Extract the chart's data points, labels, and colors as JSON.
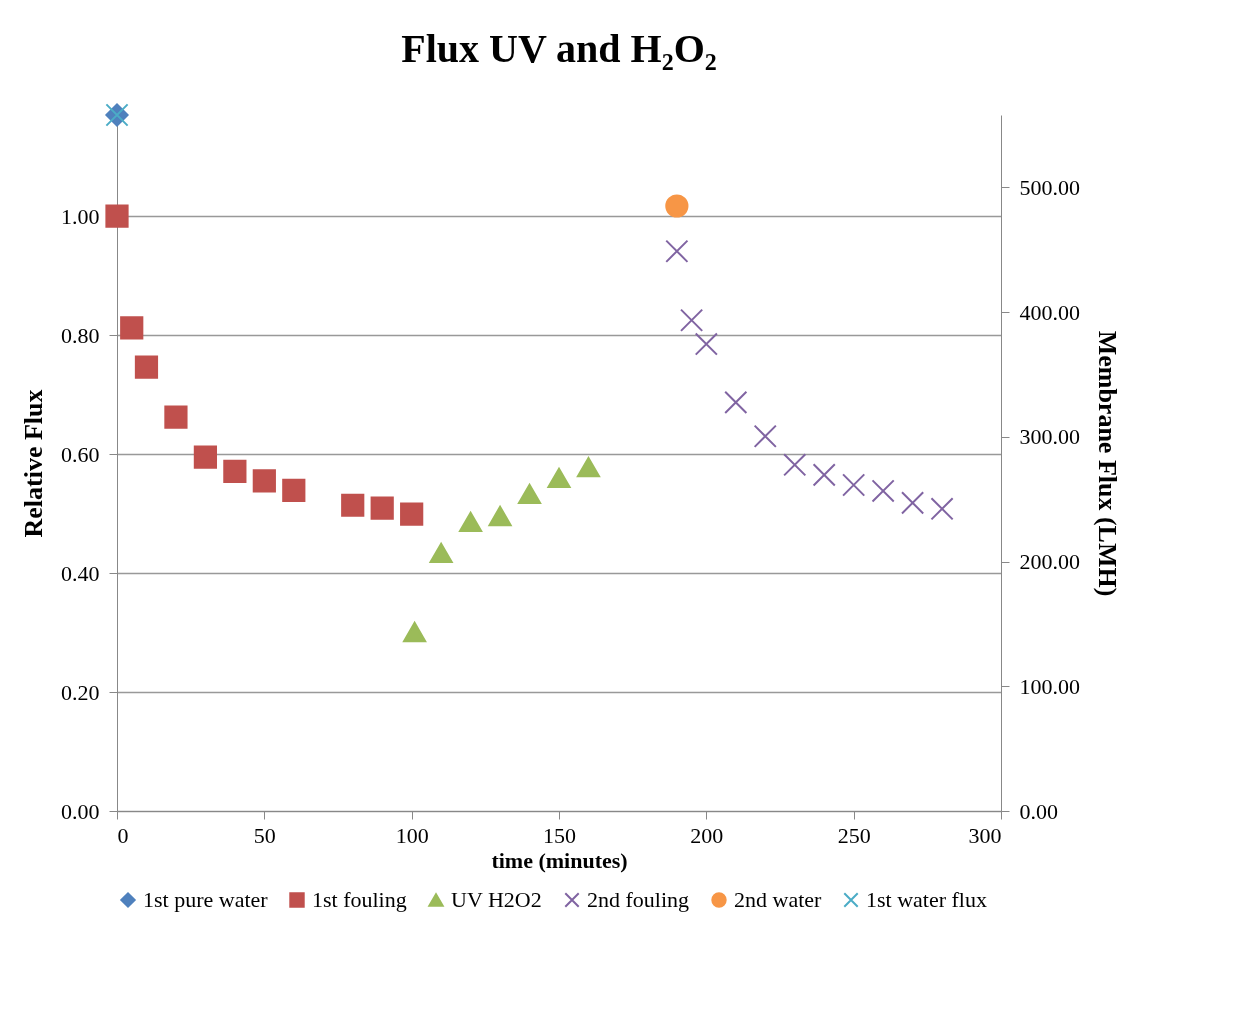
{
  "chart_data": {
    "type": "scatter",
    "title": "Flux UV and H₂O₂",
    "xlabel": "time (minutes)",
    "ylabel": "Relative Flux",
    "y2label": "Membrane Flux (LMH)",
    "xlim": [
      0,
      300
    ],
    "xticks": [
      0,
      50,
      100,
      150,
      200,
      250,
      300
    ],
    "ylim": [
      0,
      1.17
    ],
    "yticks": [
      {
        "value": 0,
        "label": "0.00"
      },
      {
        "value": 0.2,
        "label": "0.20"
      },
      {
        "value": 0.4,
        "label": "0.40"
      },
      {
        "value": 0.6,
        "label": "0.60"
      },
      {
        "value": 0.8,
        "label": "0.80"
      },
      {
        "value": 1.0,
        "label": "1.00"
      }
    ],
    "y2lim": [
      0,
      558
    ],
    "y2ticks": [
      {
        "value": 0,
        "label": "0.00"
      },
      {
        "value": 100,
        "label": "100.00"
      },
      {
        "value": 200,
        "label": "200.00"
      },
      {
        "value": 300,
        "label": "300.00"
      },
      {
        "value": 400,
        "label": "400.00"
      },
      {
        "value": 500,
        "label": "500.00"
      }
    ],
    "grid": "y",
    "legend": "bottom",
    "series": [
      {
        "name": "1st pure water",
        "color": "#4f81bd",
        "marker": "diamond",
        "x": [
          0
        ],
        "values": [
          1.17
        ]
      },
      {
        "name": "1st fouling",
        "color": "#c0504d",
        "marker": "square",
        "x": [
          0,
          5,
          10,
          20,
          30,
          40,
          50,
          60,
          80,
          90,
          100
        ],
        "values": [
          1.0,
          0.812,
          0.746,
          0.662,
          0.595,
          0.571,
          0.555,
          0.539,
          0.514,
          0.509,
          0.499
        ]
      },
      {
        "name": "UV H2O2",
        "color": "#9bbb59",
        "marker": "triangle",
        "x": [
          101,
          110,
          120,
          130,
          140,
          150,
          160
        ],
        "values": [
          0.301,
          0.434,
          0.486,
          0.496,
          0.533,
          0.56,
          0.578
        ]
      },
      {
        "name": "2nd fouling",
        "color": "#8064a2",
        "marker": "cross",
        "x": [
          190,
          195,
          200,
          210,
          220,
          230,
          240,
          250,
          260,
          270,
          280
        ],
        "values": [
          0.941,
          0.825,
          0.785,
          0.687,
          0.63,
          0.582,
          0.565,
          0.548,
          0.538,
          0.518,
          0.508
        ]
      },
      {
        "name": "2nd water",
        "color": "#f79646",
        "marker": "circle",
        "x": [
          190
        ],
        "values": [
          1.017
        ]
      },
      {
        "name": "1st water flux",
        "color": "#4bacc6",
        "marker": "cross",
        "axis": "y2",
        "x": [
          0
        ],
        "values": [
          558
        ]
      }
    ]
  }
}
